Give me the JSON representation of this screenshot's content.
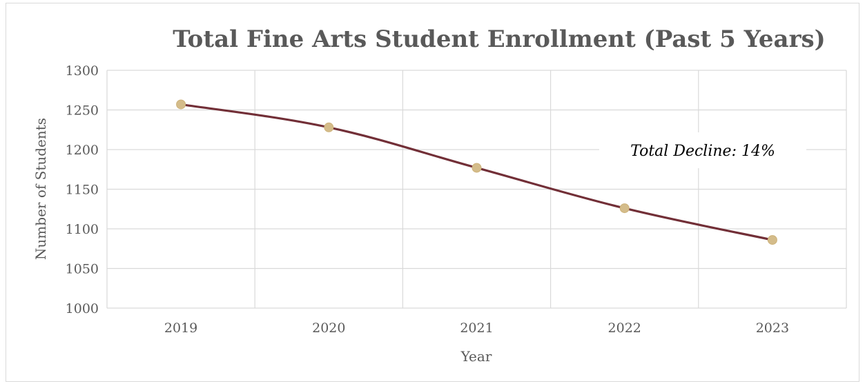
{
  "chart_data": {
    "type": "line",
    "title": "Total Fine Arts Student Enrollment (Past 5 Years)",
    "xlabel": "Year",
    "ylabel": "Number of Students",
    "categories": [
      "2019",
      "2020",
      "2021",
      "2022",
      "2023"
    ],
    "series": [
      {
        "values": [
          1257,
          1228,
          1177,
          1126,
          1086
        ],
        "line_color": "#722f37",
        "marker_color": "#d4bc8a"
      }
    ],
    "ylim": [
      1000,
      1300
    ],
    "yticks": [
      1000,
      1050,
      1100,
      1150,
      1200,
      1250,
      1300
    ],
    "grid": true,
    "annotation": "Total Decline: 14%",
    "colors": {
      "grid": "#d9d9d9",
      "text": "#595959"
    }
  }
}
